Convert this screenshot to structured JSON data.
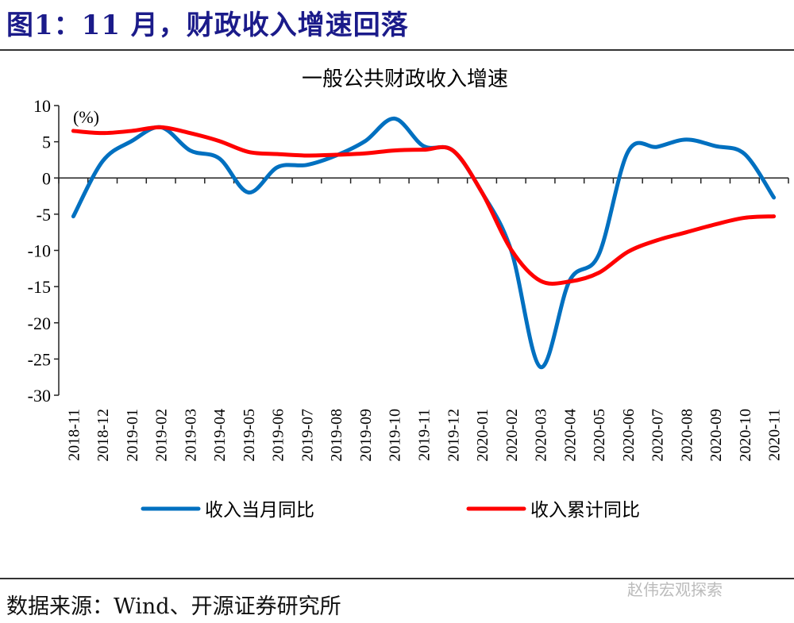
{
  "figure_title": "图1：11 月，财政收入增速回落",
  "source": "数据来源：Wind、开源证券研究所",
  "watermark": "赵伟宏观探索",
  "chart_data": {
    "type": "line",
    "title": "一般公共财政收入增速",
    "unit_label": "(%)",
    "ylim": [
      -30,
      10
    ],
    "yticks": [
      10,
      5,
      0,
      -5,
      -10,
      -15,
      -20,
      -25,
      -30
    ],
    "grid": false,
    "legend_position": "bottom",
    "categories": [
      "2018-11",
      "2018-12",
      "2019-01",
      "2019-02",
      "2019-03",
      "2019-04",
      "2019-05",
      "2019-06",
      "2019-07",
      "2019-08",
      "2019-09",
      "2019-10",
      "2019-11",
      "2019-12",
      "2020-01",
      "2020-02",
      "2020-03",
      "2020-04",
      "2020-05",
      "2020-06",
      "2020-07",
      "2020-08",
      "2020-09",
      "2020-10",
      "2020-11"
    ],
    "series": [
      {
        "name": "收入当月同比",
        "color": "#0070C0",
        "values": [
          -5.3,
          2.3,
          5.1,
          7.0,
          3.8,
          2.7,
          -2.0,
          1.5,
          1.8,
          3.1,
          5.1,
          8.2,
          4.4,
          3.8,
          -2.0,
          -10.0,
          -26.1,
          -14.2,
          -10.6,
          3.6,
          4.3,
          5.3,
          4.4,
          3.3,
          -2.7
        ]
      },
      {
        "name": "收入累计同比",
        "color": "#FF0000",
        "values": [
          6.5,
          6.2,
          6.5,
          7.0,
          6.2,
          5.1,
          3.6,
          3.3,
          3.1,
          3.2,
          3.4,
          3.8,
          3.9,
          3.8,
          -2.0,
          -9.9,
          -14.2,
          -14.3,
          -13.1,
          -10.2,
          -8.6,
          -7.5,
          -6.4,
          -5.5,
          -5.3
        ]
      }
    ]
  }
}
